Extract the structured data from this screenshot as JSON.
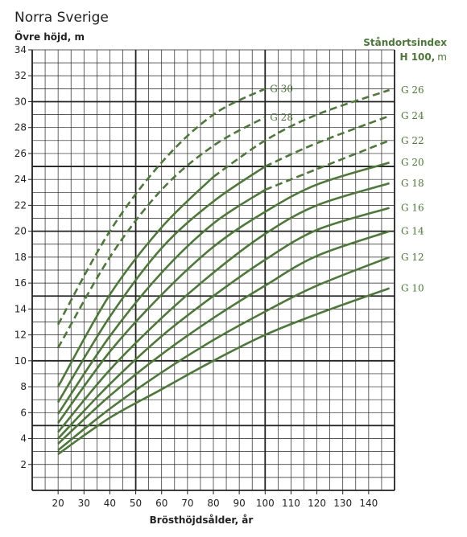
{
  "chart_data": {
    "type": "line",
    "title": "Norra Sverige",
    "ylabel": "Övre höjd, m",
    "xlabel": "Brösthöjdsålder, år",
    "legend_title": "Ståndortsindex",
    "legend_subtitle_bold": "H 100,",
    "legend_subtitle_unit": "m",
    "xlim": [
      10,
      150
    ],
    "ylim": [
      0,
      34
    ],
    "x_ticks": [
      20,
      30,
      40,
      50,
      60,
      70,
      80,
      90,
      100,
      110,
      120,
      130,
      140
    ],
    "y_ticks": [
      2,
      4,
      6,
      8,
      10,
      12,
      14,
      16,
      18,
      20,
      22,
      24,
      26,
      28,
      30,
      32,
      34
    ],
    "grid": true,
    "colors": {
      "curve": "#4a7a35",
      "grid": "#222222",
      "text": "#222222"
    },
    "series": [
      {
        "name": "G 10",
        "label_position": "right",
        "dashed": false,
        "x": [
          20,
          40,
          60,
          80,
          100,
          120,
          148
        ],
        "y": [
          2.8,
          5.6,
          7.8,
          10,
          12,
          13.6,
          15.6
        ]
      },
      {
        "name": "G 12",
        "label_position": "right",
        "dashed": false,
        "x": [
          20,
          40,
          60,
          80,
          100,
          120,
          148
        ],
        "y": [
          3.1,
          6.3,
          9.1,
          11.6,
          13.8,
          15.8,
          18
        ]
      },
      {
        "name": "G 14",
        "label_position": "right",
        "dashed": false,
        "x": [
          20,
          40,
          60,
          80,
          100,
          120,
          148
        ],
        "y": [
          3.6,
          7.3,
          10.5,
          13.3,
          15.8,
          18.1,
          20
        ]
      },
      {
        "name": "G 16",
        "label_position": "right",
        "dashed": false,
        "x": [
          20,
          40,
          60,
          80,
          100,
          120,
          148
        ],
        "y": [
          4,
          8.2,
          11.9,
          15,
          17.8,
          20.1,
          21.8
        ]
      },
      {
        "name": "G 18",
        "label_position": "right",
        "dashed": false,
        "x": [
          20,
          40,
          60,
          80,
          100,
          120,
          148
        ],
        "y": [
          4.5,
          9.3,
          13.3,
          16.8,
          19.8,
          22,
          23.7
        ]
      },
      {
        "name": "G 20",
        "label_position": "right",
        "dashed": false,
        "x": [
          20,
          40,
          60,
          80,
          100,
          120,
          148
        ],
        "y": [
          5.2,
          10.7,
          15.1,
          18.8,
          21.5,
          23.6,
          25.3
        ]
      },
      {
        "name": "G 22",
        "label_position": "right",
        "dashed": false,
        "x": [
          20,
          40,
          60,
          80,
          100
        ],
        "y": [
          5.9,
          11.9,
          16.8,
          20.6,
          23.2
        ]
      },
      {
        "name": "G 22",
        "label_position": "right",
        "dashed": true,
        "label_hidden": true,
        "x": [
          100,
          120,
          148
        ],
        "y": [
          23.2,
          24.8,
          27
        ]
      },
      {
        "name": "G 24",
        "label_position": "right",
        "dashed": false,
        "x": [
          20,
          40,
          60,
          80,
          100
        ],
        "y": [
          6.8,
          13.4,
          18.7,
          22.3,
          25
        ]
      },
      {
        "name": "G 24",
        "label_position": "right",
        "dashed": true,
        "label_hidden": true,
        "x": [
          100,
          120,
          148
        ],
        "y": [
          25,
          26.8,
          28.9
        ]
      },
      {
        "name": "G 26",
        "label_position": "right",
        "dashed": false,
        "x": [
          20,
          40,
          60,
          80
        ],
        "y": [
          8,
          15.1,
          20.3,
          24.2
        ]
      },
      {
        "name": "G 26",
        "label_position": "right",
        "dashed": true,
        "label_hidden": true,
        "x": [
          80,
          100,
          120,
          148
        ],
        "y": [
          24.2,
          27,
          29,
          30.9
        ]
      },
      {
        "name": "G 28",
        "label_position": "inside",
        "dashed": true,
        "x": [
          20,
          40,
          60,
          80,
          100
        ],
        "y": [
          11,
          18,
          23.2,
          26.6,
          28.8
        ]
      },
      {
        "name": "G 30",
        "label_position": "inside",
        "dashed": true,
        "x": [
          20,
          40,
          60,
          80,
          100
        ],
        "y": [
          12.8,
          20,
          25.3,
          29,
          31
        ]
      }
    ]
  }
}
